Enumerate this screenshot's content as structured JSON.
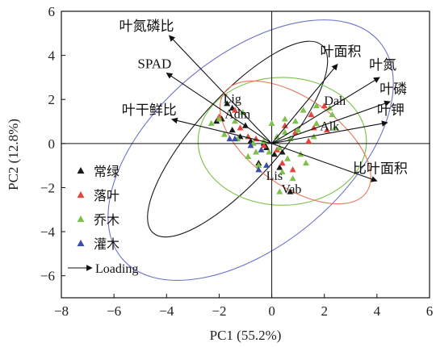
{
  "chart_data": {
    "type": "scatter",
    "xlabel": "PC1 (55.2%)",
    "ylabel": "PC2 (12.8%)",
    "xlim": [
      -8,
      6
    ],
    "ylim": [
      -7,
      6
    ],
    "xticks": [
      "−8",
      "−6",
      "−4",
      "−2",
      "0",
      "2",
      "4",
      "6"
    ],
    "yticks": [
      "6",
      "4",
      "2",
      "0",
      "−2",
      "−4",
      "−6"
    ],
    "colors": {
      "常绿": "#1a1a1a",
      "落叶": "#e8463c",
      "乔木": "#7cc24a",
      "灌木": "#3b4fa8",
      "ellipse_常绿": "#1a1a1a",
      "ellipse_落叶": "#e8775a",
      "ellipse_乔木": "#7cc24a",
      "ellipse_灌木": "#6b73c9"
    },
    "loadings": [
      {
        "label": "叶氮磷比",
        "x": -3.9,
        "y": 4.9
      },
      {
        "label": "SPAD",
        "x": -4.0,
        "y": 3.2
      },
      {
        "label": "叶干鲜比",
        "x": -3.8,
        "y": 1.1
      },
      {
        "label": "叶面积",
        "x": 2.5,
        "y": 3.6
      },
      {
        "label": "叶氮",
        "x": 4.1,
        "y": 3.0
      },
      {
        "label": "叶磷",
        "x": 4.5,
        "y": 1.9
      },
      {
        "label": "叶钾",
        "x": 4.4,
        "y": 0.95
      },
      {
        "label": "比叶面积",
        "x": 4.0,
        "y": -1.7
      }
    ],
    "point_labels": [
      {
        "label": "Lig",
        "x": -1.5,
        "y": 1.85
      },
      {
        "label": "Adm",
        "x": -1.3,
        "y": 1.15
      },
      {
        "label": "Dah",
        "x": 2.4,
        "y": 1.75
      },
      {
        "label": "Alk",
        "x": 2.2,
        "y": 0.6
      },
      {
        "label": "Lis",
        "x": 0.1,
        "y": -1.65
      },
      {
        "label": "Vab",
        "x": 0.75,
        "y": -2.25
      }
    ],
    "ellipses": [
      {
        "group": "灌木",
        "cx": -0.8,
        "cy": -0.3,
        "rx": 6.4,
        "ry": 4.3,
        "angle": -40
      },
      {
        "group": "常绿",
        "cx": -1.3,
        "cy": 0.2,
        "rx": 4.8,
        "ry": 1.9,
        "angle": -48
      },
      {
        "group": "乔木",
        "cx": 0.4,
        "cy": 0.1,
        "rx": 3.2,
        "ry": 2.9,
        "angle": 0
      },
      {
        "group": "落叶",
        "cx": 0.9,
        "cy": 0.05,
        "rx": 3.3,
        "ry": 2.0,
        "angle": 35
      }
    ],
    "series": [
      {
        "name": "常绿",
        "points": [
          [
            -1.7,
            1.8
          ],
          [
            -1.9,
            1.1
          ],
          [
            -2.1,
            1.0
          ],
          [
            -1.5,
            0.6
          ],
          [
            -1.2,
            0.3
          ],
          [
            -0.8,
            0.1
          ],
          [
            -0.2,
            -0.2
          ],
          [
            0.4,
            -0.4
          ],
          [
            0.7,
            -2.2
          ],
          [
            -0.5,
            -0.9
          ],
          [
            -1.0,
            0.8
          ],
          [
            -1.5,
            1.6
          ],
          [
            0.3,
            -1.1
          ],
          [
            0.1,
            -0.5
          ],
          [
            -0.3,
            0.0
          ]
        ]
      },
      {
        "name": "落叶",
        "points": [
          [
            -1.4,
            1.5
          ],
          [
            -1.2,
            0.7
          ],
          [
            -0.6,
            0.2
          ],
          [
            0.5,
            0.8
          ],
          [
            1.5,
            1.3
          ],
          [
            1.6,
            0.7
          ],
          [
            2.0,
            1.7
          ],
          [
            2.1,
            0.6
          ],
          [
            0.2,
            -0.3
          ],
          [
            0.8,
            -1.2
          ],
          [
            -0.9,
            0.3
          ],
          [
            -0.3,
            -0.1
          ],
          [
            0.9,
            0.5
          ],
          [
            1.4,
            0.1
          ],
          [
            -2.0,
            1.2
          ],
          [
            0.4,
            -0.9
          ]
        ]
      },
      {
        "name": "乔木",
        "points": [
          [
            -2.0,
            1.1
          ],
          [
            -2.3,
            0.9
          ],
          [
            -1.8,
            0.4
          ],
          [
            -1.3,
            0.2
          ],
          [
            -0.7,
            0.0
          ],
          [
            -0.3,
            0.1
          ],
          [
            0.2,
            0.3
          ],
          [
            0.5,
            0.5
          ],
          [
            0.9,
            1.0
          ],
          [
            1.2,
            1.5
          ],
          [
            1.7,
            1.7
          ],
          [
            2.2,
            1.6
          ],
          [
            2.3,
            1.3
          ],
          [
            1.7,
            0.9
          ],
          [
            1.0,
            0.6
          ],
          [
            0.7,
            0.2
          ],
          [
            0.3,
            -0.2
          ],
          [
            -0.1,
            -0.4
          ],
          [
            0.6,
            -0.7
          ],
          [
            1.1,
            -0.5
          ],
          [
            -0.6,
            -0.4
          ],
          [
            -0.9,
            -0.6
          ],
          [
            0.4,
            -1.3
          ],
          [
            0.8,
            -1.6
          ],
          [
            0.3,
            -2.2
          ],
          [
            -0.5,
            -1.0
          ],
          [
            1.3,
            -0.9
          ],
          [
            1.6,
            0.3
          ],
          [
            2.4,
            0.7
          ],
          [
            0.0,
            0.9
          ],
          [
            0.5,
            1.1
          ],
          [
            -1.1,
            1.4
          ],
          [
            -1.4,
            1.0
          ]
        ]
      },
      {
        "name": "灌木",
        "points": [
          [
            -1.6,
            0.2
          ],
          [
            -1.4,
            0.2
          ],
          [
            -0.4,
            -0.3
          ],
          [
            -0.5,
            -1.2
          ],
          [
            -0.2,
            -1.0
          ],
          [
            -0.8,
            -0.1
          ]
        ]
      }
    ],
    "legend": {
      "placement": "bottom-left",
      "items": [
        "常绿",
        "落叶",
        "乔木",
        "灌木",
        "Loading"
      ]
    }
  }
}
